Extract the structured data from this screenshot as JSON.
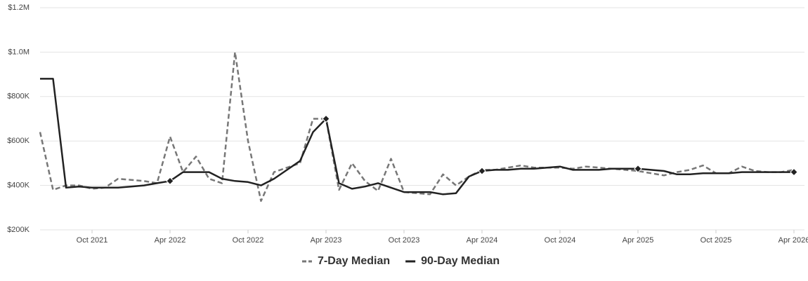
{
  "chart_data": {
    "type": "line",
    "x": [
      "2021-06",
      "2021-07",
      "2021-08",
      "2021-09",
      "2021-10",
      "2021-11",
      "2021-12",
      "2022-01",
      "2022-02",
      "2022-03",
      "2022-04",
      "2022-05",
      "2022-06",
      "2022-07",
      "2022-08",
      "2022-09",
      "2022-10",
      "2022-11",
      "2022-12",
      "2023-01",
      "2023-02",
      "2023-03",
      "2023-04",
      "2023-05",
      "2023-06",
      "2023-07",
      "2023-08",
      "2023-09",
      "2023-10",
      "2023-11",
      "2023-12",
      "2024-01",
      "2024-02",
      "2024-03",
      "2024-04",
      "2024-05",
      "2024-06",
      "2024-07",
      "2024-08",
      "2024-09",
      "2024-10",
      "2024-11",
      "2024-12",
      "2025-01",
      "2025-02",
      "2025-03",
      "2025-04",
      "2025-05",
      "2025-06",
      "2025-07",
      "2025-08",
      "2025-09",
      "2025-10",
      "2025-11",
      "2025-12",
      "2026-01",
      "2026-02",
      "2026-03",
      "2026-04"
    ],
    "series": [
      {
        "name": "7-Day Median",
        "color": "#777777",
        "dashed": true,
        "values": [
          640000,
          380000,
          400000,
          400000,
          385000,
          390000,
          430000,
          425000,
          420000,
          410000,
          620000,
          460000,
          530000,
          430000,
          410000,
          1000000,
          600000,
          330000,
          460000,
          480000,
          500000,
          700000,
          700000,
          380000,
          500000,
          420000,
          375000,
          520000,
          370000,
          365000,
          360000,
          450000,
          400000,
          440000,
          470000,
          470000,
          480000,
          490000,
          480000,
          480000,
          480000,
          475000,
          485000,
          480000,
          475000,
          470000,
          465000,
          455000,
          445000,
          460000,
          470000,
          490000,
          455000,
          455000,
          485000,
          465000,
          460000,
          460000,
          470000
        ]
      },
      {
        "name": "90-Day Median",
        "color": "#222222",
        "dashed": false,
        "values": [
          880000,
          880000,
          390000,
          395000,
          390000,
          390000,
          390000,
          395000,
          400000,
          410000,
          420000,
          460000,
          460000,
          460000,
          430000,
          420000,
          415000,
          400000,
          430000,
          470000,
          510000,
          640000,
          700000,
          410000,
          385000,
          395000,
          410000,
          390000,
          370000,
          370000,
          370000,
          360000,
          365000,
          440000,
          465000,
          470000,
          470000,
          475000,
          475000,
          480000,
          485000,
          470000,
          470000,
          470000,
          475000,
          475000,
          475000,
          470000,
          465000,
          450000,
          450000,
          455000,
          455000,
          455000,
          460000,
          460000,
          460000,
          460000,
          460000
        ]
      }
    ],
    "xlim": [
      "2021-06",
      "2026-04"
    ],
    "xticks": [
      {
        "value": "2021-10",
        "label": "Oct 2021"
      },
      {
        "value": "2022-04",
        "label": "Apr 2022"
      },
      {
        "value": "2022-10",
        "label": "Oct 2022"
      },
      {
        "value": "2023-04",
        "label": "Apr 2023"
      },
      {
        "value": "2023-10",
        "label": "Oct 2023"
      },
      {
        "value": "2024-04",
        "label": "Apr 2024"
      },
      {
        "value": "2024-10",
        "label": "Oct 2024"
      },
      {
        "value": "2025-04",
        "label": "Apr 2025"
      },
      {
        "value": "2025-10",
        "label": "Oct 2025"
      },
      {
        "value": "2026-04",
        "label": "Apr 2026"
      }
    ],
    "ylim": [
      200000,
      1200000
    ],
    "yticks": [
      {
        "value": 200000,
        "label": "$200K"
      },
      {
        "value": 400000,
        "label": "$400K"
      },
      {
        "value": 600000,
        "label": "$600K"
      },
      {
        "value": 800000,
        "label": "$800K"
      },
      {
        "value": 1000000,
        "label": "$1.0M"
      },
      {
        "value": 1200000,
        "label": "$1.2M"
      }
    ],
    "grid": true,
    "legend": "bottom"
  }
}
